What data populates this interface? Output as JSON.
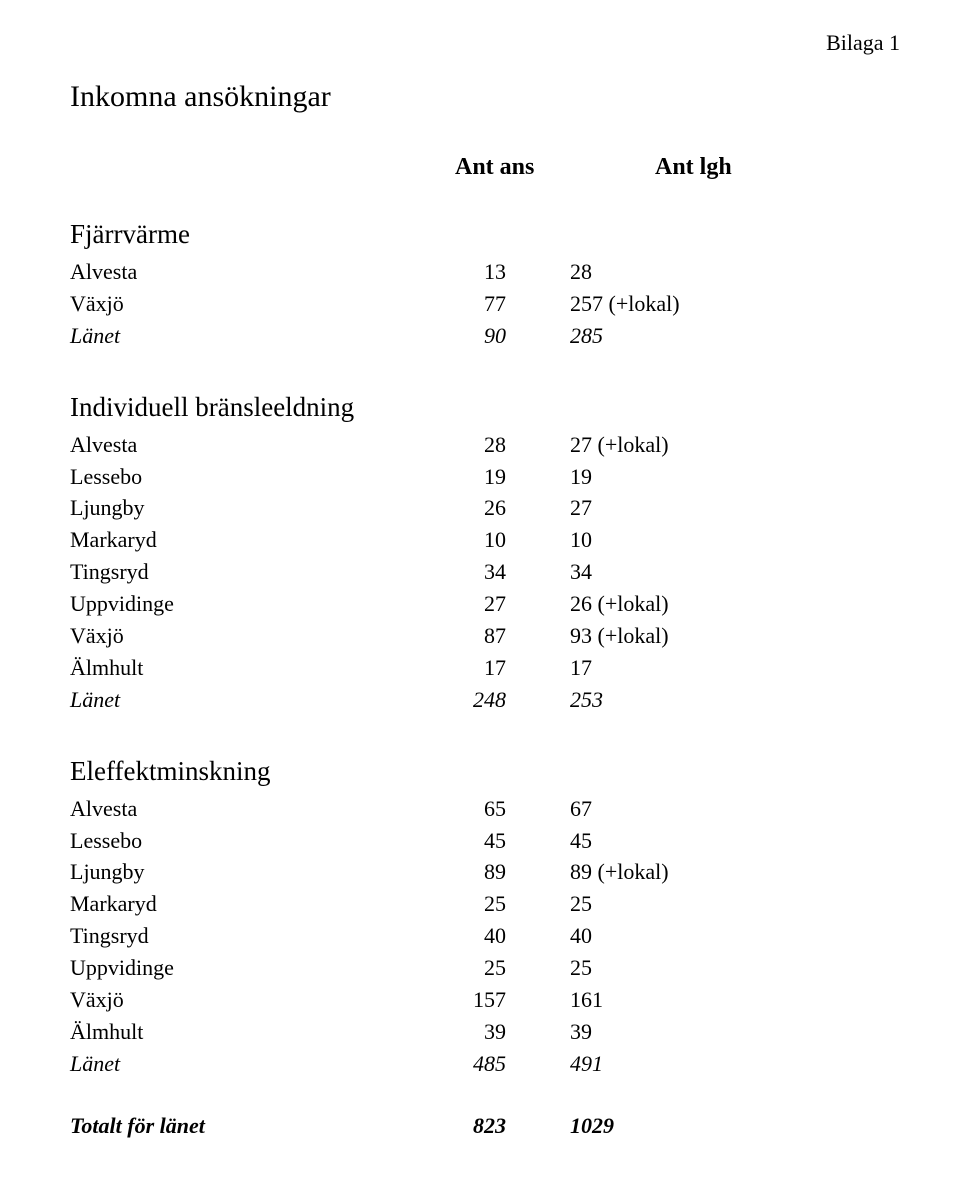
{
  "corner_label": "Bilaga 1",
  "title": "Inkomna ansökningar",
  "columns": {
    "c2": "Ant ans",
    "c3": "Ant lgh"
  },
  "sections": {
    "fjarrvärme": {
      "heading": "Fjärrvärme",
      "rows": {
        "alvesta": {
          "label": "Alvesta",
          "ans": "13",
          "lgh": "28"
        },
        "vaxjo": {
          "label": "Växjö",
          "ans": "77",
          "lgh": "257 (+lokal)"
        },
        "lanet": {
          "label": "Länet",
          "ans": "90",
          "lgh": "285"
        }
      }
    },
    "bransle": {
      "heading": "Individuell bränsleeldning",
      "rows": {
        "alvesta": {
          "label": "Alvesta",
          "ans": "28",
          "lgh": "27 (+lokal)"
        },
        "lessebo": {
          "label": "Lessebo",
          "ans": "19",
          "lgh": "19"
        },
        "ljungby": {
          "label": "Ljungby",
          "ans": "26",
          "lgh": "27"
        },
        "markaryd": {
          "label": "Markaryd",
          "ans": "10",
          "lgh": "10"
        },
        "tingsryd": {
          "label": "Tingsryd",
          "ans": "34",
          "lgh": "34"
        },
        "uppvidinge": {
          "label": "Uppvidinge",
          "ans": "27",
          "lgh": "26 (+lokal)"
        },
        "vaxjo": {
          "label": "Växjö",
          "ans": "87",
          "lgh": "93 (+lokal)"
        },
        "almhult": {
          "label": "Älmhult",
          "ans": "17",
          "lgh": "17"
        },
        "lanet": {
          "label": "Länet",
          "ans": "248",
          "lgh": "253"
        }
      }
    },
    "eleffekt": {
      "heading": "Eleffektminskning",
      "rows": {
        "alvesta": {
          "label": "Alvesta",
          "ans": "65",
          "lgh": "67"
        },
        "lessebo": {
          "label": "Lessebo",
          "ans": "45",
          "lgh": "45"
        },
        "ljungby": {
          "label": "Ljungby",
          "ans": "89",
          "lgh": "89 (+lokal)"
        },
        "markaryd": {
          "label": "Markaryd",
          "ans": "25",
          "lgh": "25"
        },
        "tingsryd": {
          "label": "Tingsryd",
          "ans": "40",
          "lgh": "40"
        },
        "uppvidinge": {
          "label": "Uppvidinge",
          "ans": "25",
          "lgh": "25"
        },
        "vaxjo": {
          "label": "Växjö",
          "ans": "157",
          "lgh": "161"
        },
        "almhult": {
          "label": "Älmhult",
          "ans": "39",
          "lgh": "39"
        },
        "lanet": {
          "label": "Länet",
          "ans": "485",
          "lgh": "491"
        }
      }
    }
  },
  "total": {
    "label": "Totalt för länet",
    "ans": "823",
    "lgh": "1029"
  }
}
